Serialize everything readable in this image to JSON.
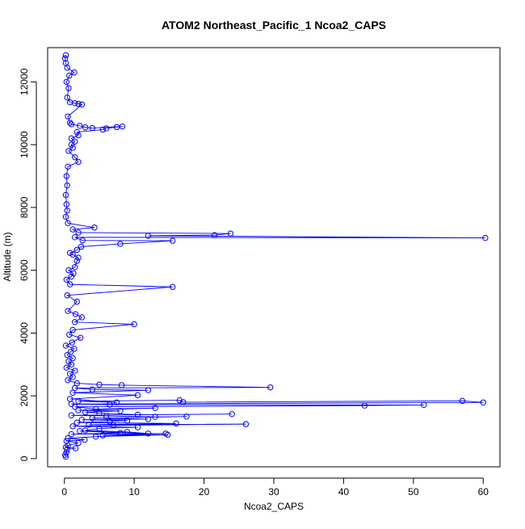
{
  "chart_data": {
    "type": "scatter",
    "title": "ATOM2 Northeast_Pacific_1 Ncoa2_CAPS",
    "xlabel": "Ncoa2_CAPS",
    "ylabel": "Altitude (m)",
    "xlim": [
      -2.4,
      62.4
    ],
    "ylim": [
      -260,
      13090
    ],
    "x_ticks": [
      0,
      10,
      20,
      30,
      40,
      50,
      60
    ],
    "y_ticks": [
      0,
      2000,
      4000,
      6000,
      8000,
      10000,
      12000
    ],
    "x_tick_labels": [
      "0",
      "10",
      "20",
      "30",
      "40",
      "50",
      "60"
    ],
    "y_tick_labels": [
      "0",
      "2000",
      "4000",
      "6000",
      "8000",
      "10000",
      "12000"
    ],
    "grid": false,
    "legend": "none",
    "point_style": "open-circle",
    "line_style": "connected",
    "series_color": "#0000ff",
    "series": [
      {
        "points": [
          [
            0.2,
            60
          ],
          [
            0.1,
            120
          ],
          [
            0.3,
            200
          ],
          [
            0.4,
            300
          ],
          [
            1.6,
            330
          ],
          [
            0.2,
            360
          ],
          [
            0.5,
            420
          ],
          [
            2.0,
            500
          ],
          [
            0.3,
            560
          ],
          [
            2.9,
            600
          ],
          [
            0.5,
            650
          ],
          [
            4.5,
            700
          ],
          [
            14.8,
            760
          ],
          [
            5.5,
            740
          ],
          [
            14.5,
            800
          ],
          [
            1.0,
            780
          ],
          [
            8.0,
            820
          ],
          [
            2.2,
            880
          ],
          [
            12.0,
            800
          ],
          [
            9.0,
            850
          ],
          [
            3.0,
            900
          ],
          [
            5.0,
            960
          ],
          [
            10.5,
            1000
          ],
          [
            1.2,
            1030
          ],
          [
            7.0,
            1060
          ],
          [
            26.0,
            1100
          ],
          [
            3.5,
            1080
          ],
          [
            16.0,
            1120
          ],
          [
            1.8,
            1150
          ],
          [
            6.5,
            1180
          ],
          [
            9.0,
            1210
          ],
          [
            2.5,
            1240
          ],
          [
            12.0,
            1260
          ],
          [
            4.0,
            1290
          ],
          [
            17.5,
            1340
          ],
          [
            13.0,
            1330
          ],
          [
            6.0,
            1360
          ],
          [
            1.0,
            1380
          ],
          [
            24.0,
            1420
          ],
          [
            10.5,
            1400
          ],
          [
            5.0,
            1450
          ],
          [
            3.0,
            1480
          ],
          [
            8.0,
            1520
          ],
          [
            2.0,
            1540
          ],
          [
            13.0,
            1610
          ],
          [
            4.5,
            1580
          ],
          [
            1.5,
            1650
          ],
          [
            43.0,
            1690
          ],
          [
            51.5,
            1710
          ],
          [
            6.5,
            1720
          ],
          [
            1.0,
            1740
          ],
          [
            60.0,
            1790
          ],
          [
            57.0,
            1840
          ],
          [
            17.0,
            1800
          ],
          [
            16.5,
            1860
          ],
          [
            2.0,
            1830
          ],
          [
            7.5,
            1790
          ],
          [
            0.8,
            1900
          ],
          [
            10.5,
            2020
          ],
          [
            1.2,
            2100
          ],
          [
            12.0,
            2180
          ],
          [
            4.0,
            2200
          ],
          [
            1.5,
            2250
          ],
          [
            29.5,
            2270
          ],
          [
            8.2,
            2340
          ],
          [
            5.0,
            2360
          ],
          [
            1.8,
            2400
          ],
          [
            0.5,
            2500
          ],
          [
            1.2,
            2600
          ],
          [
            0.8,
            2700
          ],
          [
            1.5,
            2800
          ],
          [
            0.3,
            2900
          ],
          [
            1.0,
            3000
          ],
          [
            0.6,
            3100
          ],
          [
            1.2,
            3200
          ],
          [
            0.4,
            3300
          ],
          [
            0.9,
            3400
          ],
          [
            1.4,
            3500
          ],
          [
            0.2,
            3600
          ],
          [
            1.1,
            3700
          ],
          [
            2.3,
            3850
          ],
          [
            0.7,
            3950
          ],
          [
            1.2,
            4100
          ],
          [
            10.0,
            4280
          ],
          [
            1.5,
            4350
          ],
          [
            2.5,
            4500
          ],
          [
            1.6,
            4600
          ],
          [
            0.5,
            4700
          ],
          [
            1.8,
            5000
          ],
          [
            0.4,
            5200
          ],
          [
            15.5,
            5470
          ],
          [
            0.8,
            5550
          ],
          [
            0.3,
            5700
          ],
          [
            1.0,
            5800
          ],
          [
            1.3,
            5900
          ],
          [
            0.6,
            6000
          ],
          [
            1.5,
            6100
          ],
          [
            1.8,
            6300
          ],
          [
            2.0,
            6400
          ],
          [
            1.2,
            6500
          ],
          [
            0.8,
            6550
          ],
          [
            1.8,
            6650
          ],
          [
            2.4,
            6750
          ],
          [
            8.0,
            6840
          ],
          [
            15.5,
            6940
          ],
          [
            2.6,
            6950
          ],
          [
            1.5,
            7050
          ],
          [
            60.3,
            7030
          ],
          [
            12.0,
            7100
          ],
          [
            21.5,
            7120
          ],
          [
            23.8,
            7170
          ],
          [
            2.0,
            7200
          ],
          [
            1.2,
            7300
          ],
          [
            4.3,
            7360
          ],
          [
            0.5,
            7500
          ],
          [
            0.2,
            7700
          ],
          [
            0.4,
            7900
          ],
          [
            0.3,
            8100
          ],
          [
            0.2,
            8400
          ],
          [
            0.4,
            8700
          ],
          [
            0.3,
            9000
          ],
          [
            0.5,
            9300
          ],
          [
            2.0,
            9450
          ],
          [
            1.5,
            9600
          ],
          [
            0.6,
            9800
          ],
          [
            1.2,
            9900
          ],
          [
            1.0,
            10000
          ],
          [
            1.5,
            10100
          ],
          [
            1.0,
            10200
          ],
          [
            2.0,
            10300
          ],
          [
            1.8,
            10400
          ],
          [
            5.5,
            10480
          ],
          [
            6.0,
            10520
          ],
          [
            7.5,
            10560
          ],
          [
            8.3,
            10580
          ],
          [
            4.0,
            10530
          ],
          [
            3.0,
            10550
          ],
          [
            2.2,
            10600
          ],
          [
            1.0,
            10650
          ],
          [
            0.8,
            10700
          ],
          [
            0.5,
            10900
          ],
          [
            2.5,
            11280
          ],
          [
            2.0,
            11300
          ],
          [
            1.5,
            11320
          ],
          [
            0.8,
            11350
          ],
          [
            0.4,
            11500
          ],
          [
            0.6,
            11800
          ],
          [
            0.3,
            12000
          ],
          [
            0.7,
            12200
          ],
          [
            1.4,
            12300
          ],
          [
            0.4,
            12450
          ],
          [
            0.2,
            12600
          ],
          [
            0.1,
            12750
          ],
          [
            0.2,
            12850
          ]
        ]
      }
    ]
  }
}
